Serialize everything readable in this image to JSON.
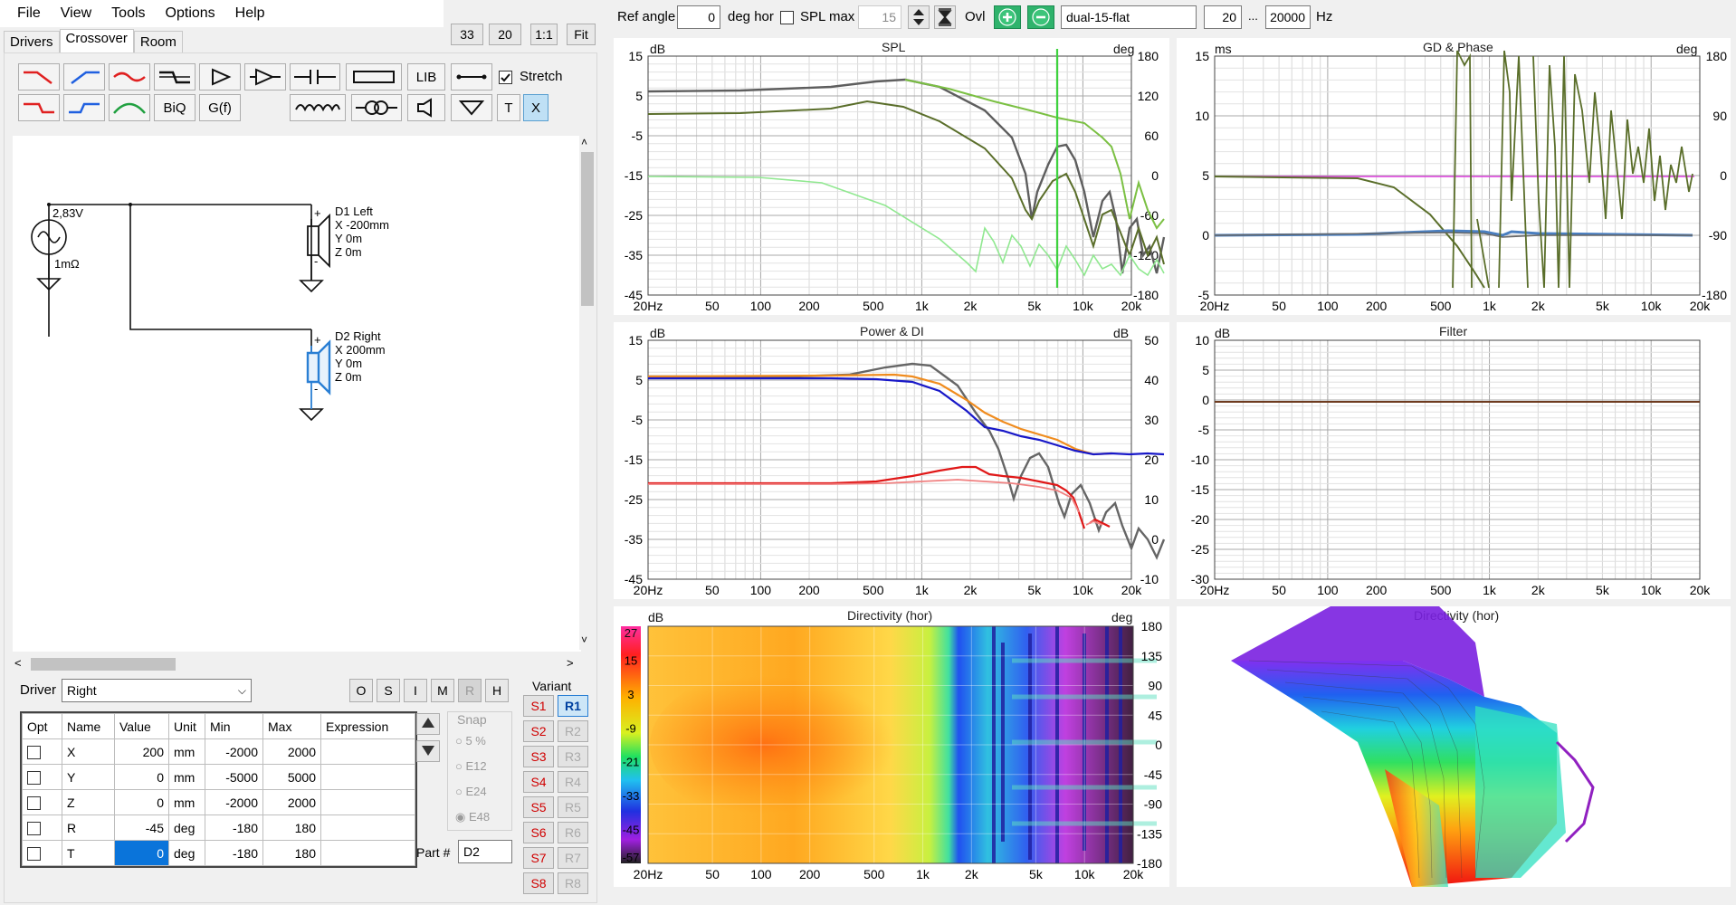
{
  "menu": [
    "File",
    "View",
    "Tools",
    "Options",
    "Help"
  ],
  "tabs": [
    "Drivers",
    "Crossover",
    "Room"
  ],
  "zoom": {
    "a": "33",
    "b": "20",
    "one_to_one": "1:1",
    "fit": "Fit"
  },
  "toolbar": {
    "lib": "LIB",
    "biq": "BiQ",
    "gf": "G(f)",
    "t": "T",
    "x": "X",
    "stretch": "Stretch"
  },
  "schematic": {
    "source_voltage": "2,83V",
    "source_impedance": "1mΩ",
    "d1": {
      "name": "D1 Left",
      "x": "X -200mm",
      "y": "Y 0m",
      "z": "Z 0m"
    },
    "d2": {
      "name": "D2 Right",
      "x": "X 200mm",
      "y": "Y 0m",
      "z": "Z 0m"
    }
  },
  "driver": {
    "label": "Driver",
    "value": "Right",
    "buttons": [
      "O",
      "S",
      "I",
      "M",
      "R",
      "H"
    ]
  },
  "params_table": {
    "headers": [
      "Opt",
      "Name",
      "Value",
      "Unit",
      "Min",
      "Max",
      "Expression"
    ],
    "rows": [
      [
        "",
        "X",
        "200",
        "mm",
        "-2000",
        "2000",
        ""
      ],
      [
        "",
        "Y",
        "0",
        "mm",
        "-5000",
        "5000",
        ""
      ],
      [
        "",
        "Z",
        "0",
        "mm",
        "-2000",
        "2000",
        ""
      ],
      [
        "",
        "R",
        "-45",
        "deg",
        "-180",
        "180",
        ""
      ],
      [
        "",
        "T",
        "0",
        "deg",
        "-180",
        "180",
        ""
      ]
    ]
  },
  "snap": {
    "label": "Snap",
    "options": [
      "5 %",
      "E12",
      "E24",
      "E48"
    ]
  },
  "part": {
    "label": "Part #",
    "value": "D2"
  },
  "variant": {
    "label": "Variant",
    "s": [
      "S1",
      "S2",
      "S3",
      "S4",
      "S5",
      "S6",
      "S7",
      "S8"
    ],
    "r": [
      "R1",
      "R2",
      "R3",
      "R4",
      "R5",
      "R6",
      "R7",
      "R8"
    ]
  },
  "topbar": {
    "ref_angle_label": "Ref angle",
    "ref_angle_value": "0",
    "deg_hor": "deg hor",
    "spl_max_label": "SPL max",
    "spl_max_value": "15",
    "ovl": "Ovl",
    "preset": "dual-15-flat",
    "f_low": "20",
    "dots": "...",
    "f_high": "20000",
    "hz": "Hz"
  },
  "freq_ticks": [
    "20Hz",
    "50",
    "100",
    "200",
    "500",
    "1k",
    "2k",
    "5k",
    "10k",
    "20k"
  ],
  "charts": {
    "spl": {
      "title": "SPL",
      "left_unit": "dB",
      "right_unit": "deg",
      "left_ticks": [
        "15",
        "5",
        "-5",
        "-15",
        "-25",
        "-35",
        "-45"
      ],
      "right_ticks": [
        "180",
        "120",
        "60",
        "0",
        "-60",
        "-120",
        "-180"
      ]
    },
    "gd": {
      "title": "GD & Phase",
      "left_unit": "ms",
      "right_unit": "deg",
      "left_ticks": [
        "15",
        "10",
        "5",
        "0",
        "-5"
      ],
      "right_ticks": [
        "180",
        "90",
        "0",
        "-90",
        "-180"
      ]
    },
    "power": {
      "title": "Power & DI",
      "left_unit": "dB",
      "right_unit": "dB",
      "left_ticks": [
        "15",
        "5",
        "-5",
        "-15",
        "-25",
        "-35",
        "-45"
      ],
      "right_ticks": [
        "50",
        "40",
        "30",
        "20",
        "10",
        "0",
        "-10"
      ]
    },
    "filter": {
      "title": "Filter",
      "left_unit": "dB",
      "left_ticks": [
        "10",
        "5",
        "0",
        "-5",
        "-10",
        "-15",
        "-20",
        "-25",
        "-30"
      ]
    },
    "dir": {
      "title": "Directivity (hor)",
      "left_unit": "dB",
      "right_unit": "deg",
      "scale_ticks": [
        "27",
        "15",
        "3",
        "-9",
        "-21",
        "-33",
        "-45",
        "-57"
      ],
      "right_ticks": [
        "180",
        "135",
        "90",
        "45",
        "0",
        "-45",
        "-90",
        "-135",
        "-180"
      ]
    },
    "dir3d": {
      "title": "Directivity (hor)"
    }
  },
  "colors": {
    "spl_dark": "#5e5e5e",
    "spl_olive": "#5a6e2a",
    "spl_light": "#7bc043",
    "power_gray": "#666666",
    "power_orange": "#f08c1e",
    "power_blue": "#1818c8",
    "di_red": "#e01818",
    "di_pink": "#f08080",
    "phase_olive": "#5a6e2a",
    "gd_magenta": "#e040e0",
    "gd_blue": "#4a7fc0"
  }
}
